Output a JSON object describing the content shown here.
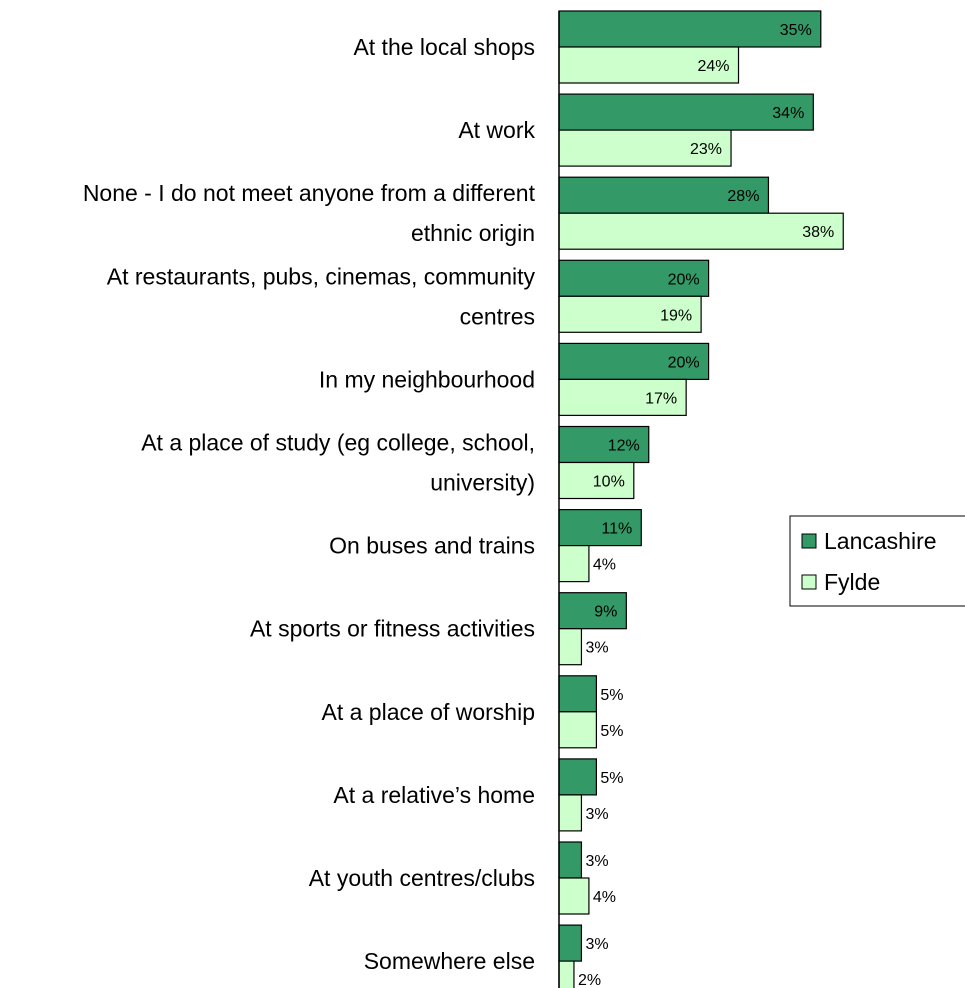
{
  "chart_data": {
    "type": "bar",
    "orientation": "horizontal",
    "categories": [
      [
        "At the local shops"
      ],
      [
        "At work"
      ],
      [
        "None - I do not meet anyone from a different",
        "ethnic origin"
      ],
      [
        "At restaurants, pubs, cinemas, community",
        "centres"
      ],
      [
        "In my neighbourhood"
      ],
      [
        "At a place of study (eg college, school,",
        "university)"
      ],
      [
        "On buses and trains"
      ],
      [
        "At sports or fitness activities"
      ],
      [
        "At a place of worship"
      ],
      [
        "At a relative’s home"
      ],
      [
        "At youth centres/clubs"
      ],
      [
        "Somewhere else"
      ]
    ],
    "series": [
      {
        "name": "Lancashire",
        "color": "#339966",
        "values": [
          35,
          34,
          28,
          20,
          20,
          12,
          11,
          9,
          5,
          5,
          3,
          3
        ],
        "labels": [
          "35%",
          "34%",
          "28%",
          "20%",
          "20%",
          "12%",
          "11%",
          "9%",
          "5%",
          "5%",
          "3%",
          "3%"
        ]
      },
      {
        "name": "Fylde",
        "color": "#ccffcc",
        "values": [
          24,
          23,
          38,
          19,
          17,
          10,
          4,
          3,
          5,
          3,
          4,
          2
        ],
        "labels": [
          "24%",
          "23%",
          "38%",
          "19%",
          "17%",
          "10%",
          "4%",
          "3%",
          "5%",
          "3%",
          "4%",
          "2%"
        ]
      }
    ],
    "xlim": [
      0,
      40
    ],
    "grid": false,
    "legend_position": "right"
  }
}
